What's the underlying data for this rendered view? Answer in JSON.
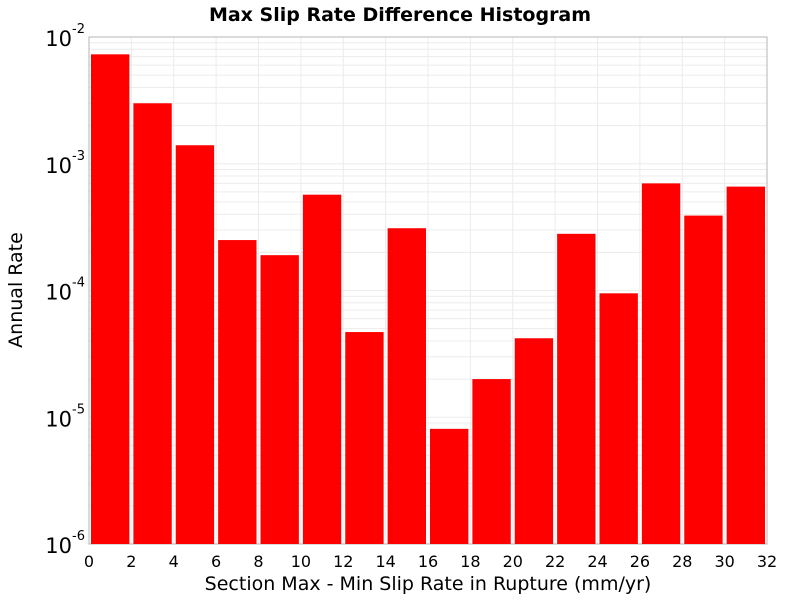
{
  "chart_data": {
    "type": "bar",
    "title": "Max Slip Rate Difference Histogram",
    "xlabel": "Section Max - Min Slip Rate in Rupture (mm/yr)",
    "ylabel": "Annual Rate",
    "y_scale": "log",
    "xlim": [
      0,
      32
    ],
    "ylim": [
      1e-06,
      0.01
    ],
    "grid": true,
    "bar_color": "#ff0000",
    "x_ticks": [
      "0",
      "2",
      "4",
      "6",
      "8",
      "10",
      "12",
      "14",
      "16",
      "18",
      "20",
      "22",
      "24",
      "26",
      "28",
      "30",
      "32"
    ],
    "y_ticks": [
      {
        "base": "10",
        "exp": "-2",
        "value": 0.01
      },
      {
        "base": "10",
        "exp": "-3",
        "value": 0.001
      },
      {
        "base": "10",
        "exp": "-4",
        "value": 0.0001
      },
      {
        "base": "10",
        "exp": "-5",
        "value": 1e-05
      },
      {
        "base": "10",
        "exp": "-6",
        "value": 1e-06
      }
    ],
    "bins": [
      {
        "x0": 0,
        "x1": 2,
        "value": 0.0073
      },
      {
        "x0": 2,
        "x1": 4,
        "value": 0.003
      },
      {
        "x0": 4,
        "x1": 6,
        "value": 0.0014
      },
      {
        "x0": 6,
        "x1": 8,
        "value": 0.00025
      },
      {
        "x0": 8,
        "x1": 10,
        "value": 0.00019
      },
      {
        "x0": 10,
        "x1": 12,
        "value": 0.00057
      },
      {
        "x0": 12,
        "x1": 14,
        "value": 4.7e-05
      },
      {
        "x0": 14,
        "x1": 16,
        "value": 0.00031
      },
      {
        "x0": 16,
        "x1": 18,
        "value": 8.1e-06
      },
      {
        "x0": 18,
        "x1": 20,
        "value": 2e-05
      },
      {
        "x0": 20,
        "x1": 22,
        "value": 4.2e-05
      },
      {
        "x0": 22,
        "x1": 24,
        "value": 0.00028
      },
      {
        "x0": 24,
        "x1": 26,
        "value": 9.5e-05
      },
      {
        "x0": 26,
        "x1": 28,
        "value": 0.0007
      },
      {
        "x0": 28,
        "x1": 30,
        "value": 0.00039
      },
      {
        "x0": 30,
        "x1": 32,
        "value": 0.00066
      }
    ]
  }
}
